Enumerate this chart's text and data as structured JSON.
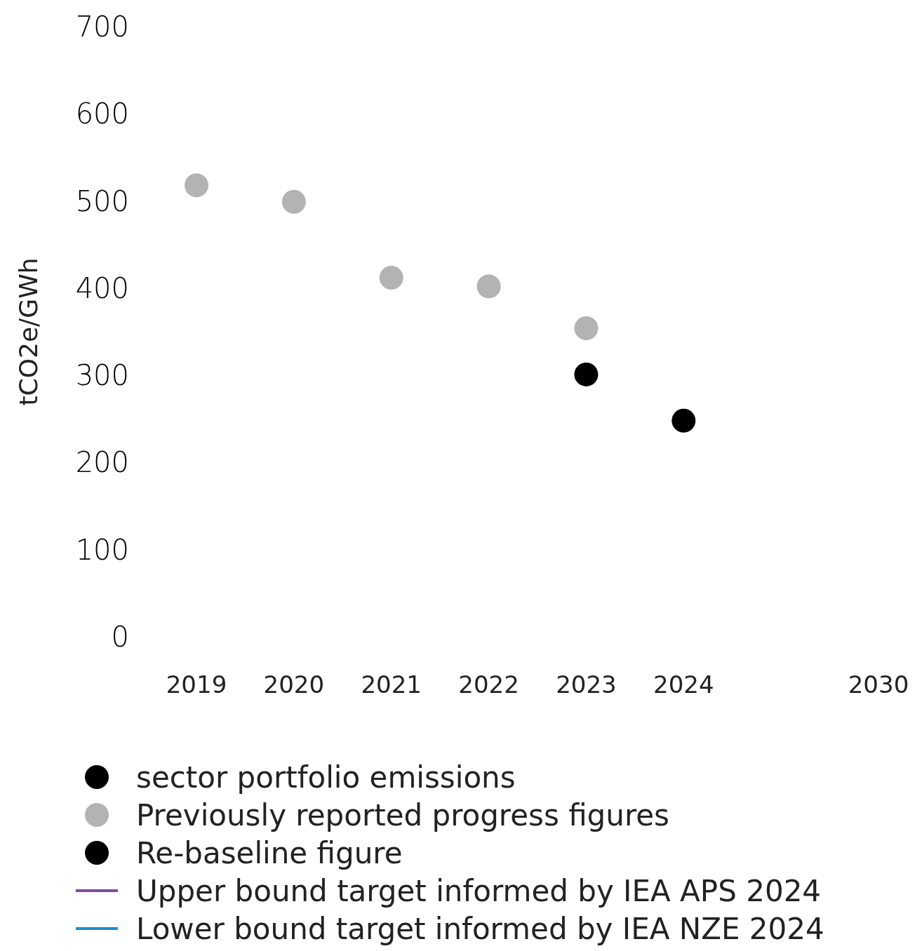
{
  "chart_data": {
    "type": "scatter",
    "ylabel": "tCO2e/GWh",
    "categories": [
      "2019",
      "2020",
      "2021",
      "2022",
      "2023",
      "2024",
      null,
      "2030"
    ],
    "ylim": [
      0,
      700
    ],
    "yticks": [
      0,
      100,
      200,
      300,
      400,
      500,
      600,
      700
    ],
    "grid": false,
    "legend": "bottom",
    "marker": "circle",
    "series": [
      {
        "name": "sector portfolio emissions",
        "color": "#000000",
        "values": [
          null,
          null,
          null,
          null,
          null,
          248,
          null,
          null
        ]
      },
      {
        "name": "Previously reported progress figures",
        "color": "#b3b3b3",
        "values": [
          518,
          499,
          412,
          402,
          354,
          null,
          null,
          null
        ]
      },
      {
        "name": "Re-baseline figure",
        "color": "#000000",
        "values": [
          null,
          null,
          null,
          null,
          301,
          null,
          null,
          null
        ]
      },
      {
        "name": "Upper bound target informed by IEA APS 2024",
        "type": "line",
        "color": "#7b4fa0",
        "values": [
          null,
          null,
          null,
          null,
          null,
          null,
          null,
          null
        ]
      },
      {
        "name": "Lower bound target informed by IEA NZE 2024",
        "type": "line",
        "color": "#1a8fc9",
        "values": [
          null,
          null,
          null,
          null,
          null,
          null,
          null,
          null
        ]
      }
    ]
  }
}
